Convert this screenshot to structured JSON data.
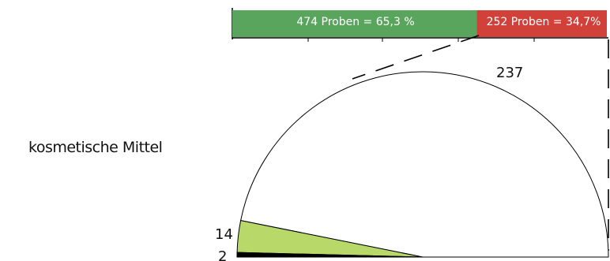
{
  "category": "kosmetische Mittel",
  "chart_data": {
    "type": "bar-of-pie",
    "stacked_bar": {
      "segments": [
        {
          "label": "474 Proben = 65,3 %",
          "value": 474,
          "percent": 65.3,
          "color": "#5aa55e"
        },
        {
          "label": "252 Proben = 34,7%",
          "value": 252,
          "percent": 34.7,
          "color": "#d2403a"
        }
      ]
    },
    "pie": {
      "total_samples": 252,
      "slices": [
        {
          "label": "237",
          "value": 237,
          "color": "#ffffff"
        },
        {
          "label": "14",
          "value": 14,
          "color": "#b8d86a"
        },
        {
          "label": "2",
          "value": 2,
          "color": "#000000"
        }
      ]
    }
  }
}
